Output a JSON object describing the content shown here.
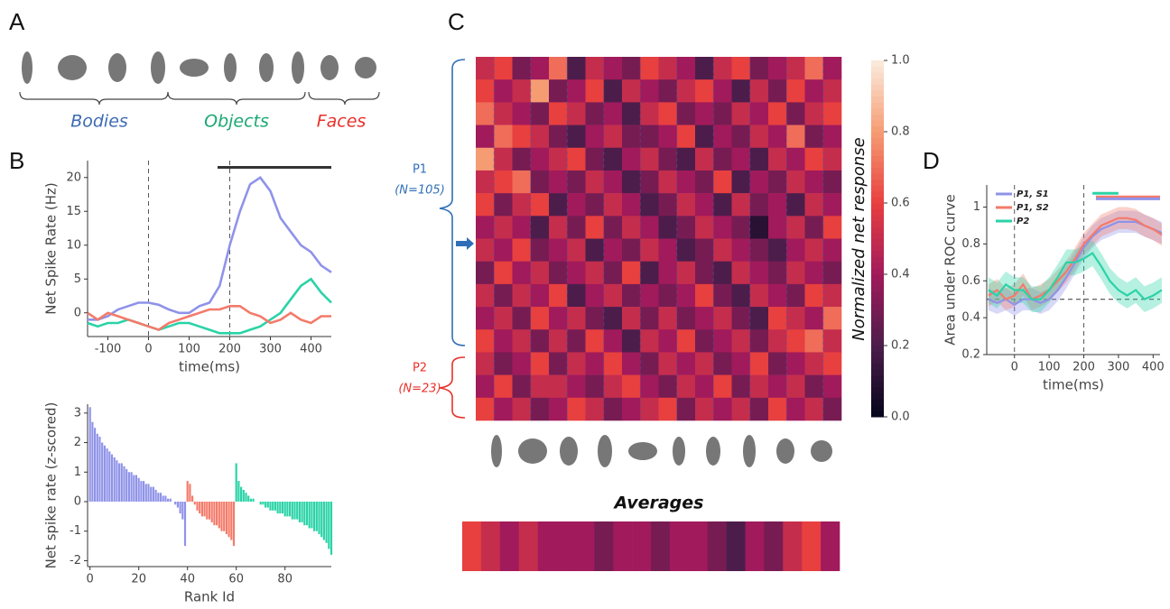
{
  "panel_a": {
    "label": "A",
    "groups": [
      "Bodies",
      "Objects",
      "Faces"
    ],
    "colors": [
      "#3d6bb3",
      "#1aa874",
      "#e8302a"
    ]
  },
  "chart_data": [
    {
      "type": "line",
      "panel": "B",
      "x_label": "time(ms)",
      "y_label": "Net Spike Rate (Hz)",
      "x": [
        -150,
        -125,
        -100,
        -75,
        -50,
        -25,
        0,
        25,
        50,
        75,
        100,
        125,
        150,
        175,
        200,
        225,
        250,
        275,
        300,
        325,
        350,
        375,
        400,
        425,
        450
      ],
      "series": [
        {
          "color": "#8f93e8",
          "values": [
            -1,
            -1,
            -0.5,
            0.5,
            1,
            1.5,
            1.5,
            1.2,
            0.5,
            0,
            0,
            1,
            1.5,
            4,
            10,
            15,
            19,
            20,
            18,
            14,
            12,
            10,
            9,
            7,
            6
          ]
        },
        {
          "color": "#2ad3a7",
          "values": [
            -1.5,
            -2,
            -1.5,
            -1.5,
            -1,
            -1.5,
            -2,
            -2.5,
            -2,
            -1.5,
            -1.5,
            -2,
            -2.5,
            -3,
            -3,
            -3,
            -2.5,
            -2,
            -1,
            0,
            2,
            4,
            5,
            3,
            1.5
          ]
        },
        {
          "color": "#f47a6a",
          "values": [
            0,
            -1,
            0,
            -0.5,
            -1,
            -1.5,
            -2,
            -2.5,
            -1.5,
            -1,
            -0.5,
            0,
            0.5,
            0.5,
            1,
            1,
            0,
            -0.5,
            -1.5,
            -1,
            0,
            -1,
            -1.5,
            -0.5,
            -0.5
          ]
        }
      ],
      "xlim": [
        -150,
        450
      ],
      "ylim": [
        -3.5,
        22.5
      ],
      "xticks": [
        -100,
        0,
        100,
        200,
        300,
        400
      ],
      "yticks": [
        0,
        5,
        10,
        15,
        20
      ],
      "vlines": [
        0,
        200
      ],
      "sig_bars": [
        {
          "x": [
            170,
            450
          ],
          "y": 21.5,
          "color": "#333333"
        }
      ]
    },
    {
      "type": "bar",
      "x_label": "Rank Id",
      "y_label": "Net spike rate (z-scored)",
      "series": [
        {
          "color": "#8f93e8",
          "x": [
            0,
            1,
            2,
            3,
            4,
            5,
            6,
            7,
            8,
            9,
            10,
            11,
            12,
            13,
            14,
            15,
            16,
            17,
            18,
            19,
            20,
            21,
            22,
            23,
            24,
            25,
            26,
            27,
            28,
            29,
            30,
            31,
            32,
            33,
            34,
            35,
            36,
            37,
            38,
            39
          ],
          "values": [
            3.2,
            2.7,
            2.5,
            2.3,
            2.2,
            2.0,
            1.9,
            1.8,
            1.7,
            1.6,
            1.5,
            1.4,
            1.3,
            1.3,
            1.2,
            1.1,
            1.0,
            1.0,
            0.9,
            0.9,
            0.8,
            0.7,
            0.7,
            0.6,
            0.6,
            0.5,
            0.5,
            0.4,
            0.3,
            0.3,
            0.2,
            0.2,
            0.1,
            0.1,
            0,
            -0.1,
            -0.2,
            -0.4,
            -0.6,
            -1.5
          ]
        },
        {
          "color": "#f47a6a",
          "x": [
            40,
            41,
            42,
            43,
            44,
            45,
            46,
            47,
            48,
            49,
            50,
            51,
            52,
            53,
            54,
            55,
            56,
            57,
            58,
            59
          ],
          "values": [
            0.7,
            0.6,
            0.2,
            -0.1,
            -0.3,
            -0.4,
            -0.5,
            -0.5,
            -0.6,
            -0.6,
            -0.7,
            -0.8,
            -0.8,
            -0.9,
            -1.0,
            -1.0,
            -1.1,
            -1.2,
            -1.3,
            -1.5
          ]
        },
        {
          "color": "#2ad3a7",
          "x": [
            60,
            61,
            62,
            63,
            64,
            65,
            66,
            67,
            68,
            69,
            70,
            71,
            72,
            73,
            74,
            75,
            76,
            77,
            78,
            79,
            80,
            81,
            82,
            83,
            84,
            85,
            86,
            87,
            88,
            89,
            90,
            91,
            92,
            93,
            94,
            95,
            96,
            97,
            98,
            99
          ],
          "values": [
            1.3,
            0.7,
            0.5,
            0.4,
            0.3,
            0.2,
            0.1,
            0.1,
            0.0,
            0.0,
            -0.1,
            -0.1,
            -0.2,
            -0.2,
            -0.3,
            -0.3,
            -0.3,
            -0.4,
            -0.4,
            -0.4,
            -0.5,
            -0.5,
            -0.5,
            -0.6,
            -0.6,
            -0.6,
            -0.7,
            -0.7,
            -0.8,
            -0.8,
            -0.9,
            -0.9,
            -1.0,
            -1.0,
            -1.1,
            -1.2,
            -1.3,
            -1.4,
            -1.6,
            -1.8
          ]
        }
      ],
      "xlim": [
        -1,
        99
      ],
      "ylim": [
        -2.2,
        3.3
      ],
      "xticks": [
        0,
        20,
        40,
        60,
        80
      ],
      "yticks": [
        -2,
        -1,
        0,
        1,
        2,
        3
      ]
    },
    {
      "type": "heatmap",
      "panel": "C",
      "colorbar_label": "Normalized net response",
      "subtitle": "Averages",
      "groups": [
        {
          "label": "P1",
          "n": "(N=105)",
          "color": "#2f6fb7"
        },
        {
          "label": "P2",
          "n": "(N=23)",
          "color": "#e8302a"
        }
      ],
      "values": [
        [
          0.5,
          0.6,
          0.3,
          0.4,
          0.7,
          0.2,
          0.5,
          0.4,
          0.3,
          0.6,
          0.5,
          0.4,
          0.2,
          0.5,
          0.6,
          0.3,
          0.4,
          0.5,
          0.7,
          0.4
        ],
        [
          0.6,
          0.4,
          0.5,
          0.8,
          0.3,
          0.4,
          0.6,
          0.2,
          0.5,
          0.4,
          0.3,
          0.5,
          0.6,
          0.4,
          0.2,
          0.5,
          0.3,
          0.6,
          0.4,
          0.5
        ],
        [
          0.7,
          0.5,
          0.4,
          0.3,
          0.6,
          0.5,
          0.3,
          0.4,
          0.2,
          0.5,
          0.6,
          0.3,
          0.4,
          0.3,
          0.5,
          0.4,
          0.6,
          0.3,
          0.5,
          0.6
        ],
        [
          0.4,
          0.7,
          0.6,
          0.5,
          0.3,
          0.2,
          0.4,
          0.5,
          0.3,
          0.3,
          0.4,
          0.6,
          0.2,
          0.4,
          0.3,
          0.5,
          0.4,
          0.7,
          0.3,
          0.4
        ],
        [
          0.8,
          0.5,
          0.3,
          0.4,
          0.5,
          0.6,
          0.3,
          0.2,
          0.4,
          0.5,
          0.3,
          0.2,
          0.5,
          0.3,
          0.4,
          0.2,
          0.5,
          0.4,
          0.6,
          0.5
        ],
        [
          0.5,
          0.6,
          0.7,
          0.3,
          0.4,
          0.3,
          0.5,
          0.4,
          0.2,
          0.3,
          0.5,
          0.4,
          0.3,
          0.6,
          0.2,
          0.4,
          0.3,
          0.5,
          0.4,
          0.3
        ],
        [
          0.6,
          0.3,
          0.5,
          0.6,
          0.2,
          0.4,
          0.3,
          0.5,
          0.4,
          0.2,
          0.3,
          0.5,
          0.4,
          0.2,
          0.5,
          0.3,
          0.4,
          0.2,
          0.5,
          0.4
        ],
        [
          0.4,
          0.5,
          0.4,
          0.2,
          0.5,
          0.3,
          0.6,
          0.3,
          0.5,
          0.4,
          0.2,
          0.3,
          0.5,
          0.4,
          0.3,
          0.1,
          0.4,
          0.5,
          0.3,
          0.6
        ],
        [
          0.5,
          0.4,
          0.6,
          0.3,
          0.4,
          0.5,
          0.2,
          0.4,
          0.3,
          0.5,
          0.4,
          0.2,
          0.3,
          0.5,
          0.4,
          0.3,
          0.2,
          0.4,
          0.5,
          0.4
        ],
        [
          0.3,
          0.6,
          0.4,
          0.5,
          0.3,
          0.4,
          0.5,
          0.3,
          0.6,
          0.2,
          0.4,
          0.5,
          0.3,
          0.2,
          0.5,
          0.4,
          0.3,
          0.5,
          0.4,
          0.3
        ],
        [
          0.5,
          0.3,
          0.5,
          0.4,
          0.6,
          0.2,
          0.4,
          0.5,
          0.3,
          0.4,
          0.3,
          0.4,
          0.6,
          0.3,
          0.2,
          0.5,
          0.4,
          0.3,
          0.6,
          0.5
        ],
        [
          0.4,
          0.5,
          0.3,
          0.6,
          0.4,
          0.5,
          0.3,
          0.2,
          0.5,
          0.3,
          0.5,
          0.3,
          0.4,
          0.5,
          0.3,
          0.2,
          0.6,
          0.5,
          0.4,
          0.7
        ],
        [
          0.6,
          0.4,
          0.5,
          0.3,
          0.5,
          0.3,
          0.6,
          0.4,
          0.2,
          0.5,
          0.4,
          0.6,
          0.3,
          0.4,
          0.5,
          0.3,
          0.5,
          0.6,
          0.7,
          0.5
        ],
        [
          0.5,
          0.3,
          0.4,
          0.6,
          0.3,
          0.5,
          0.4,
          0.6,
          0.4,
          0.3,
          0.5,
          0.4,
          0.5,
          0.3,
          0.4,
          0.6,
          0.3,
          0.4,
          0.5,
          0.6
        ],
        [
          0.4,
          0.6,
          0.3,
          0.5,
          0.5,
          0.4,
          0.3,
          0.5,
          0.6,
          0.4,
          0.3,
          0.5,
          0.4,
          0.6,
          0.3,
          0.5,
          0.4,
          0.5,
          0.3,
          0.4
        ],
        [
          0.6,
          0.4,
          0.5,
          0.3,
          0.4,
          0.6,
          0.5,
          0.3,
          0.4,
          0.5,
          0.6,
          0.3,
          0.5,
          0.4,
          0.5,
          0.3,
          0.6,
          0.4,
          0.5,
          0.3
        ]
      ],
      "averages": [
        0.6,
        0.5,
        0.4,
        0.5,
        0.4,
        0.4,
        0.4,
        0.3,
        0.4,
        0.4,
        0.3,
        0.4,
        0.4,
        0.3,
        0.2,
        0.4,
        0.3,
        0.5,
        0.6,
        0.4
      ],
      "clim": [
        0,
        1
      ],
      "cticks": [
        {
          "value": 0,
          "label": "0.0"
        },
        {
          "value": 0.2,
          "label": "0.2"
        },
        {
          "value": 0.4,
          "label": "0.4"
        },
        {
          "value": 0.6,
          "label": "0.6"
        },
        {
          "value": 0.8,
          "label": "0.8"
        },
        {
          "value": 1,
          "label": "1.0"
        }
      ]
    },
    {
      "type": "band-line",
      "panel": "D",
      "x_label": "time(ms)",
      "y_label": "Area under ROC curve",
      "x": [
        -75,
        -50,
        -25,
        0,
        25,
        50,
        75,
        100,
        125,
        150,
        175,
        200,
        225,
        250,
        275,
        300,
        325,
        350,
        375,
        400,
        425
      ],
      "series": [
        {
          "name": "P1, S1",
          "color": "#8f93e8",
          "error": 0.06,
          "values": [
            0.5,
            0.48,
            0.5,
            0.47,
            0.5,
            0.5,
            0.48,
            0.5,
            0.55,
            0.62,
            0.7,
            0.78,
            0.84,
            0.88,
            0.9,
            0.92,
            0.92,
            0.92,
            0.9,
            0.88,
            0.86
          ]
        },
        {
          "name": "P1, S2",
          "color": "#f47a6a",
          "error": 0.06,
          "values": [
            0.52,
            0.55,
            0.5,
            0.52,
            0.58,
            0.5,
            0.52,
            0.55,
            0.6,
            0.65,
            0.72,
            0.8,
            0.85,
            0.9,
            0.92,
            0.94,
            0.94,
            0.93,
            0.9,
            0.88,
            0.85
          ]
        },
        {
          "name": "P2",
          "color": "#2ad3a7",
          "error": 0.07,
          "values": [
            0.55,
            0.52,
            0.58,
            0.55,
            0.55,
            0.5,
            0.5,
            0.55,
            0.62,
            0.7,
            0.7,
            0.72,
            0.75,
            0.68,
            0.6,
            0.55,
            0.52,
            0.55,
            0.5,
            0.52,
            0.55
          ]
        }
      ],
      "xlim": [
        -80,
        420
      ],
      "ylim": [
        0.2,
        1.12
      ],
      "xticks": [
        0,
        100,
        200,
        300,
        400
      ],
      "yticks": [
        0.2,
        0.4,
        0.6,
        0.8,
        1
      ],
      "vlines": [
        0,
        200
      ],
      "hlines": [
        0.5
      ],
      "sig_bars": [
        {
          "x": [
            225,
            300
          ],
          "y": 1.075,
          "color": "#2ad3a7"
        },
        {
          "x": [
            235,
            420
          ],
          "y": 1.055,
          "color": "#f47a6a"
        },
        {
          "x": [
            235,
            420
          ],
          "y": 1.045,
          "color": "#8f93e8"
        }
      ]
    }
  ]
}
